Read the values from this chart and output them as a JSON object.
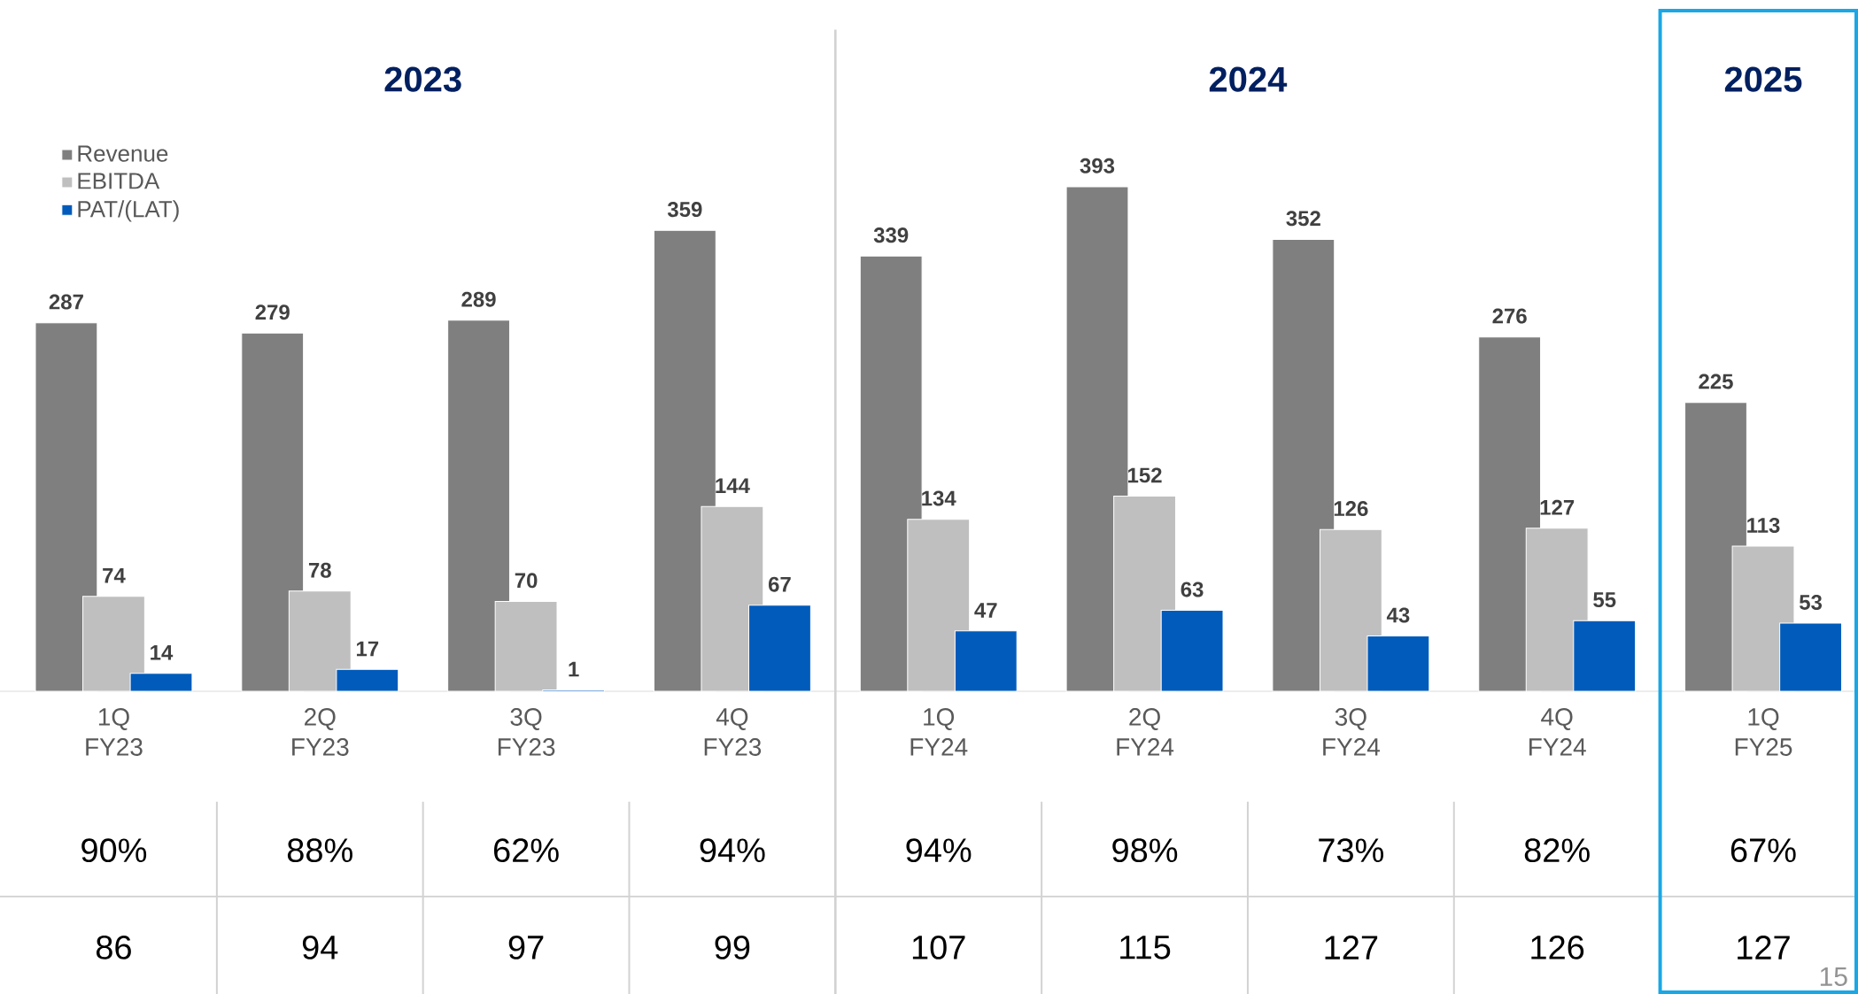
{
  "chart_data": {
    "type": "bar",
    "categories": [
      "1Q FY23",
      "2Q FY23",
      "3Q FY23",
      "4Q FY23",
      "1Q FY24",
      "2Q FY24",
      "3Q FY24",
      "4Q FY24",
      "1Q FY25"
    ],
    "series": [
      {
        "name": "Revenue",
        "color": "#7f7f7f",
        "values": [
          287,
          279,
          289,
          359,
          339,
          393,
          352,
          276,
          225
        ]
      },
      {
        "name": "EBITDA",
        "color": "#bfbfbf",
        "values": [
          74,
          78,
          70,
          144,
          134,
          152,
          126,
          127,
          113
        ]
      },
      {
        "name": "PAT/(LAT)",
        "color": "#005bbb",
        "values": [
          14,
          17,
          1,
          67,
          47,
          63,
          43,
          55,
          53
        ]
      }
    ],
    "data_labels": true,
    "legend": "top left",
    "annotations": [
      "2023",
      "2024",
      "2025",
      "90%",
      "88%",
      "62%",
      "94%",
      "94%",
      "98%",
      "73%",
      "82%",
      "67%",
      "86",
      "94",
      "97",
      "99",
      "107",
      "115",
      "127",
      "126",
      "127",
      "15"
    ]
  }
}
